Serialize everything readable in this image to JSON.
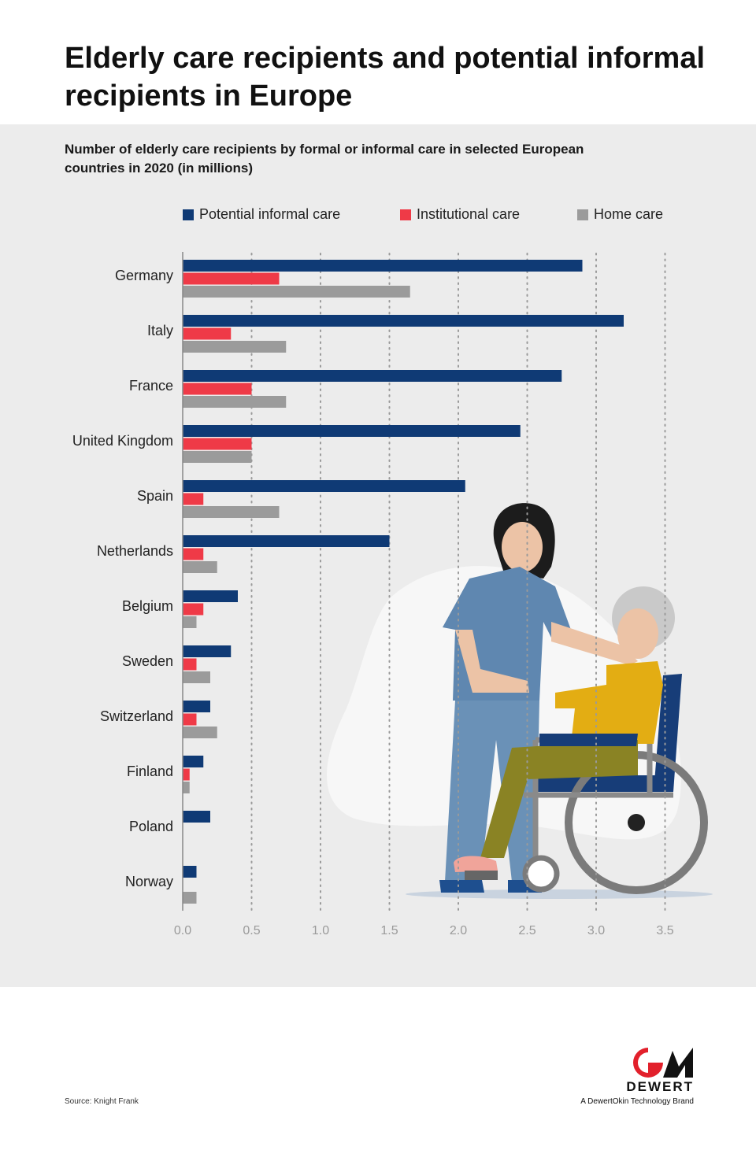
{
  "header": {
    "title": "Elderly care recipients and potential informal recipients in Europe",
    "subtitle": "Number of elderly care recipients by formal or informal care in selected European countries in 2020 (in millions)"
  },
  "chart_data": {
    "type": "bar",
    "orientation": "horizontal",
    "title": "Number of elderly care recipients by formal or informal care in selected European countries in 2020 (in millions)",
    "categories": [
      "Germany",
      "Italy",
      "France",
      "United Kingdom",
      "Spain",
      "Netherlands",
      "Belgium",
      "Sweden",
      "Switzerland",
      "Finland",
      "Poland",
      "Norway"
    ],
    "series": [
      {
        "name": "Potential informal care",
        "color": "#0f3a75",
        "values": [
          2.9,
          3.2,
          2.75,
          2.45,
          2.05,
          1.5,
          0.4,
          0.35,
          0.2,
          0.15,
          0.2,
          0.1
        ]
      },
      {
        "name": "Institutional care",
        "color": "#ef3a47",
        "values": [
          0.7,
          0.35,
          0.5,
          0.5,
          0.15,
          0.15,
          0.15,
          0.1,
          0.1,
          0.05,
          0,
          0
        ]
      },
      {
        "name": "Home care",
        "color": "#9b9b9b",
        "values": [
          1.65,
          0.75,
          0.75,
          0.5,
          0.7,
          0.25,
          0.1,
          0.2,
          0.25,
          0.05,
          0,
          0.1
        ]
      }
    ],
    "xlim": [
      0,
      3.5
    ],
    "xticks": [
      "0.0",
      "0.5",
      "1.0",
      "1.5",
      "2.0",
      "2.5",
      "3.0",
      "3.5"
    ],
    "grid": "vertical dotted",
    "legend_position": "top"
  },
  "footer": {
    "source": "Source: Knight Frank",
    "brand_name": "DEWERT",
    "brand_tagline": "A DewertOkin Technology Brand"
  }
}
